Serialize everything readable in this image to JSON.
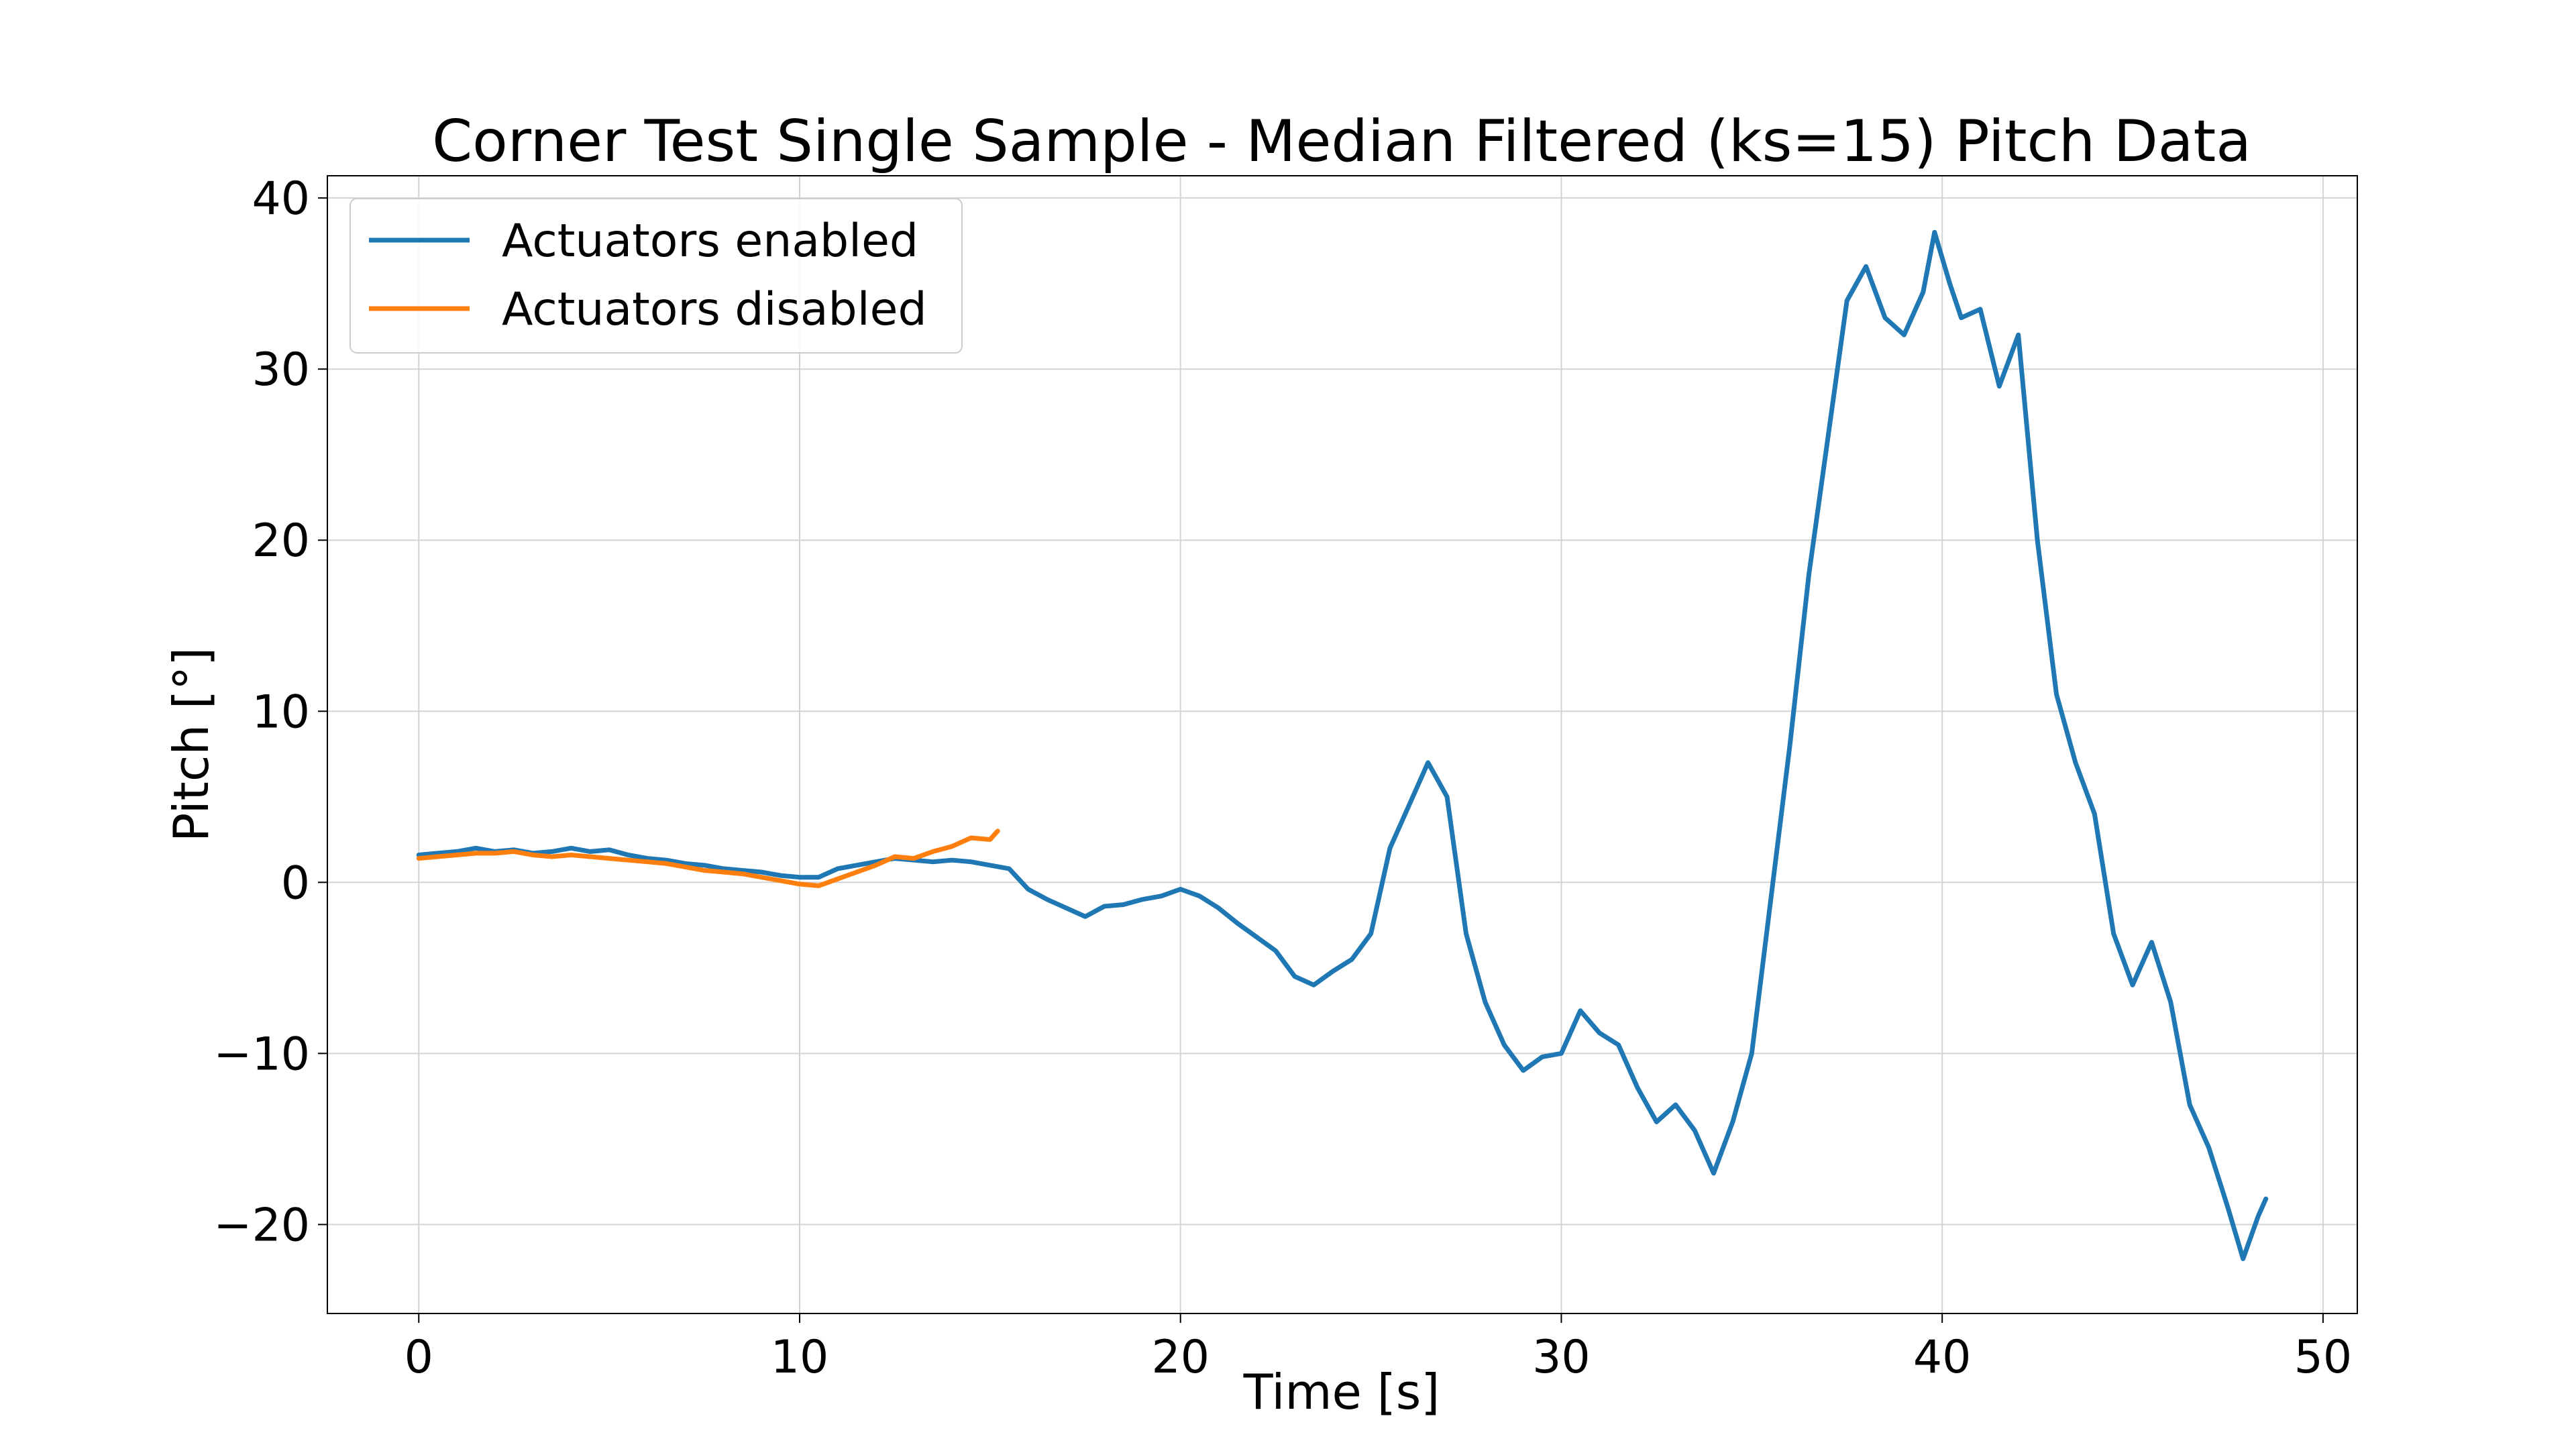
{
  "chart_data": {
    "type": "line",
    "title": "Corner Test Single Sample - Median Filtered (ks=15) Pitch Data",
    "xlabel": "Time [s]",
    "ylabel": "Pitch [°]",
    "xlim": [
      -2.4,
      50.9
    ],
    "ylim": [
      -25.2,
      41.3
    ],
    "xticks": [
      0,
      10,
      20,
      30,
      40,
      50
    ],
    "xtick_labels": [
      "0",
      "10",
      "20",
      "30",
      "40",
      "50"
    ],
    "yticks": [
      -20,
      -10,
      0,
      10,
      20,
      30,
      40
    ],
    "ytick_labels": [
      "−20",
      "−10",
      "0",
      "10",
      "20",
      "30",
      "40"
    ],
    "grid": true,
    "legend_position": "upper-left",
    "series": [
      {
        "name": "Actuators enabled",
        "color": "#1f77b4",
        "points": [
          [
            0,
            1.6
          ],
          [
            0.5,
            1.7
          ],
          [
            1.0,
            1.8
          ],
          [
            1.5,
            2.0
          ],
          [
            2.0,
            1.8
          ],
          [
            2.5,
            1.9
          ],
          [
            3.0,
            1.7
          ],
          [
            3.5,
            1.8
          ],
          [
            4.0,
            2.0
          ],
          [
            4.5,
            1.8
          ],
          [
            5.0,
            1.9
          ],
          [
            5.5,
            1.6
          ],
          [
            6.0,
            1.4
          ],
          [
            6.5,
            1.3
          ],
          [
            7.0,
            1.1
          ],
          [
            7.5,
            1.0
          ],
          [
            8.0,
            0.8
          ],
          [
            8.5,
            0.7
          ],
          [
            9.0,
            0.6
          ],
          [
            9.5,
            0.4
          ],
          [
            10.0,
            0.3
          ],
          [
            10.5,
            0.3
          ],
          [
            11.0,
            0.8
          ],
          [
            11.5,
            1.0
          ],
          [
            12.0,
            1.2
          ],
          [
            12.5,
            1.4
          ],
          [
            13.0,
            1.3
          ],
          [
            13.5,
            1.2
          ],
          [
            14.0,
            1.3
          ],
          [
            14.5,
            1.2
          ],
          [
            15.0,
            1.0
          ],
          [
            15.5,
            0.8
          ],
          [
            16.0,
            -0.4
          ],
          [
            16.5,
            -1.0
          ],
          [
            17.0,
            -1.5
          ],
          [
            17.5,
            -2.0
          ],
          [
            18.0,
            -1.4
          ],
          [
            18.5,
            -1.3
          ],
          [
            19.0,
            -1.0
          ],
          [
            19.5,
            -0.8
          ],
          [
            20.0,
            -0.4
          ],
          [
            20.5,
            -0.8
          ],
          [
            21.0,
            -1.5
          ],
          [
            21.5,
            -2.4
          ],
          [
            22.0,
            -3.2
          ],
          [
            22.5,
            -4.0
          ],
          [
            23.0,
            -5.5
          ],
          [
            23.5,
            -6.0
          ],
          [
            24.0,
            -5.2
          ],
          [
            24.5,
            -4.5
          ],
          [
            25.0,
            -3.0
          ],
          [
            25.5,
            2.0
          ],
          [
            26.0,
            4.5
          ],
          [
            26.5,
            7.0
          ],
          [
            27.0,
            5.0
          ],
          [
            27.5,
            -3.0
          ],
          [
            28.0,
            -7.0
          ],
          [
            28.5,
            -9.5
          ],
          [
            29.0,
            -11.0
          ],
          [
            29.5,
            -10.2
          ],
          [
            30.0,
            -10.0
          ],
          [
            30.5,
            -7.5
          ],
          [
            31.0,
            -8.8
          ],
          [
            31.5,
            -9.5
          ],
          [
            32.0,
            -12.0
          ],
          [
            32.5,
            -14.0
          ],
          [
            33.0,
            -13.0
          ],
          [
            33.5,
            -14.5
          ],
          [
            34.0,
            -17.0
          ],
          [
            34.5,
            -14.0
          ],
          [
            35.0,
            -10.0
          ],
          [
            35.5,
            -1.0
          ],
          [
            36.0,
            8.0
          ],
          [
            36.5,
            18.0
          ],
          [
            37.0,
            26.0
          ],
          [
            37.5,
            34.0
          ],
          [
            38.0,
            36.0
          ],
          [
            38.5,
            33.0
          ],
          [
            39.0,
            32.0
          ],
          [
            39.5,
            34.5
          ],
          [
            39.8,
            38.0
          ],
          [
            40.2,
            35.0
          ],
          [
            40.5,
            33.0
          ],
          [
            41.0,
            33.5
          ],
          [
            41.5,
            29.0
          ],
          [
            42.0,
            32.0
          ],
          [
            42.5,
            20.0
          ],
          [
            43.0,
            11.0
          ],
          [
            43.5,
            7.0
          ],
          [
            44.0,
            4.0
          ],
          [
            44.5,
            -3.0
          ],
          [
            45.0,
            -6.0
          ],
          [
            45.5,
            -3.5
          ],
          [
            46.0,
            -7.0
          ],
          [
            46.5,
            -13.0
          ],
          [
            47.0,
            -15.5
          ],
          [
            47.5,
            -19.0
          ],
          [
            47.9,
            -22.0
          ],
          [
            48.3,
            -19.5
          ],
          [
            48.5,
            -18.5
          ]
        ]
      },
      {
        "name": "Actuators disabled",
        "color": "#ff7f0e",
        "points": [
          [
            0,
            1.4
          ],
          [
            0.5,
            1.5
          ],
          [
            1.0,
            1.6
          ],
          [
            1.5,
            1.7
          ],
          [
            2.0,
            1.7
          ],
          [
            2.5,
            1.8
          ],
          [
            3.0,
            1.6
          ],
          [
            3.5,
            1.5
          ],
          [
            4.0,
            1.6
          ],
          [
            4.5,
            1.5
          ],
          [
            5.0,
            1.4
          ],
          [
            5.5,
            1.3
          ],
          [
            6.0,
            1.2
          ],
          [
            6.5,
            1.1
          ],
          [
            7.0,
            0.9
          ],
          [
            7.5,
            0.7
          ],
          [
            8.0,
            0.6
          ],
          [
            8.5,
            0.5
          ],
          [
            9.0,
            0.3
          ],
          [
            9.5,
            0.1
          ],
          [
            10.0,
            -0.1
          ],
          [
            10.5,
            -0.2
          ],
          [
            11.0,
            0.2
          ],
          [
            11.5,
            0.6
          ],
          [
            12.0,
            1.0
          ],
          [
            12.5,
            1.5
          ],
          [
            13.0,
            1.4
          ],
          [
            13.5,
            1.8
          ],
          [
            14.0,
            2.1
          ],
          [
            14.5,
            2.6
          ],
          [
            15.0,
            2.5
          ],
          [
            15.2,
            3.0
          ]
        ]
      }
    ]
  }
}
